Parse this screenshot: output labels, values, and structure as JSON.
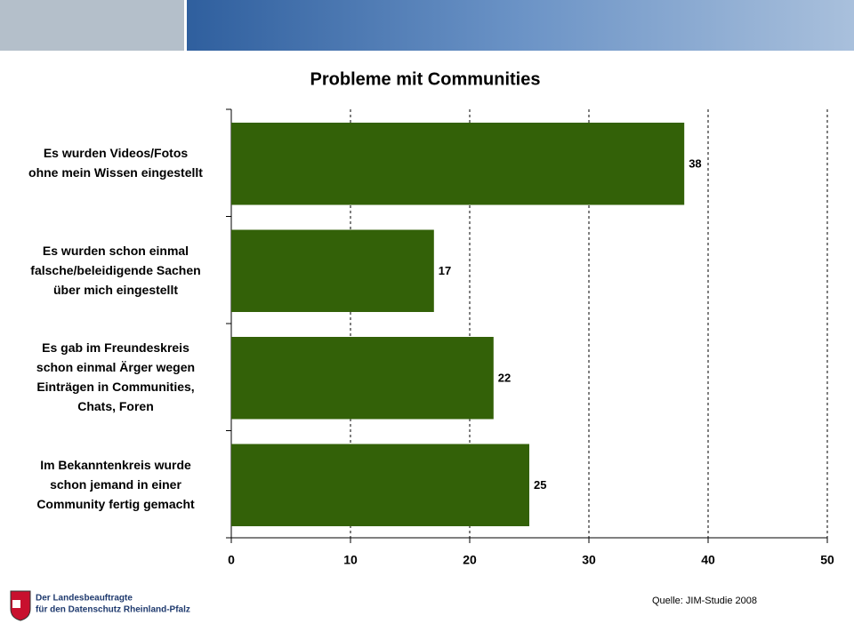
{
  "chart_data": {
    "type": "barh",
    "title": "Probleme mit Communities",
    "categories": [
      "Es wurden Videos/Fotos\nohne mein Wissen eingestellt",
      "Es wurden schon einmal\nfalsche/beleidigende Sachen\nüber mich eingestellt",
      "Es gab im Freundeskreis\nschon einmal Ärger wegen\nEinträgen in Communities,\nChats, Foren",
      "Im Bekanntenkreis wurde\nschon jemand in einer\nCommunity fertig gemacht"
    ],
    "values": [
      38,
      17,
      22,
      25
    ],
    "color": "#336108",
    "xlim": [
      0,
      50
    ],
    "xticks": [
      0,
      10,
      20,
      30,
      40,
      50
    ],
    "grid": true,
    "source": "Quelle:  JIM-Studie 2008"
  },
  "footer": {
    "logo_text": [
      "Der Landesbeauftragte",
      "für den Datenschutz Rheinland-Pfalz"
    ]
  }
}
